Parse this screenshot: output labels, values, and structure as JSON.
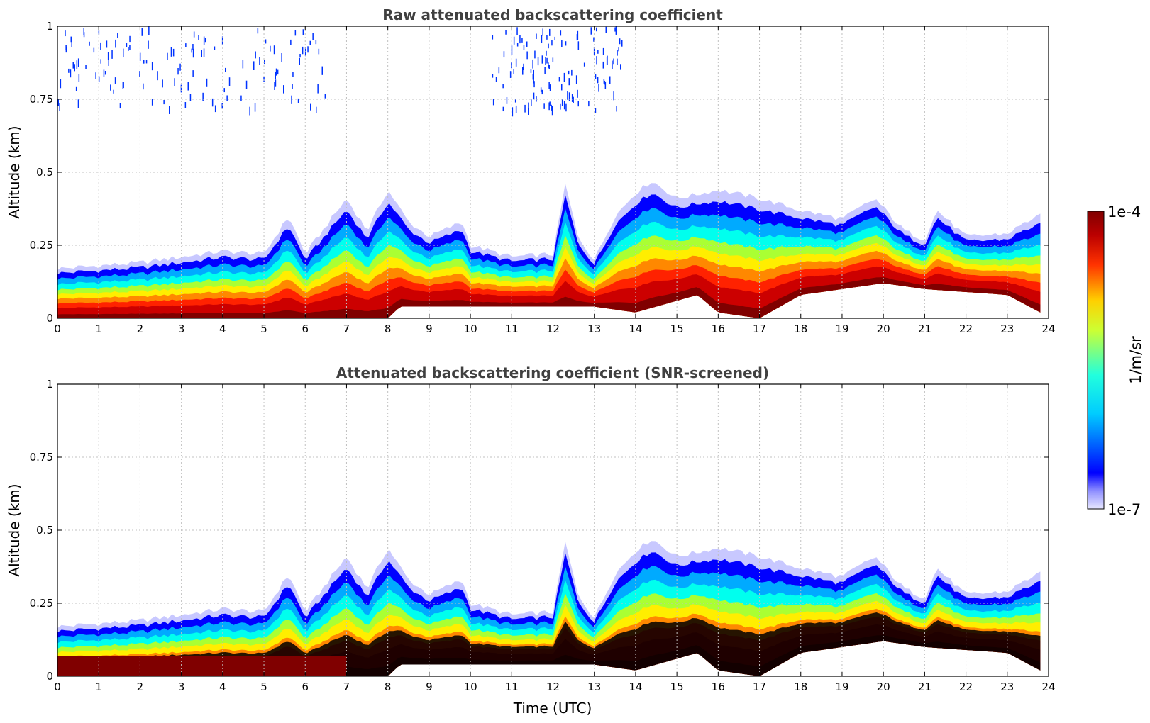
{
  "chart_data": [
    {
      "type": "heatmap",
      "title": "Raw attenuated backscattering coefficient",
      "xlabel": "",
      "ylabel": "Altitude (km)",
      "xlim": [
        0,
        24
      ],
      "ylim": [
        0,
        1
      ],
      "x_ticks": [
        "0",
        "1",
        "2",
        "3",
        "4",
        "5",
        "6",
        "7",
        "8",
        "9",
        "10",
        "11",
        "12",
        "13",
        "14",
        "15",
        "16",
        "17",
        "18",
        "19",
        "20",
        "21",
        "22",
        "23",
        "24"
      ],
      "y_ticks": [
        "0",
        "0.25",
        "0.5",
        "0.75",
        "1"
      ],
      "grid": true,
      "screened": false,
      "layer_top_km": [
        [
          0,
          0.17
        ],
        [
          1,
          0.18
        ],
        [
          2,
          0.19
        ],
        [
          3,
          0.21
        ],
        [
          4,
          0.23
        ],
        [
          5,
          0.22
        ],
        [
          5.6,
          0.35
        ],
        [
          6,
          0.22
        ],
        [
          7,
          0.41
        ],
        [
          7.5,
          0.3
        ],
        [
          8,
          0.44
        ],
        [
          8.5,
          0.33
        ],
        [
          9,
          0.28
        ],
        [
          9.8,
          0.33
        ],
        [
          10,
          0.25
        ],
        [
          11,
          0.21
        ],
        [
          12,
          0.22
        ],
        [
          12.3,
          0.46
        ],
        [
          12.6,
          0.28
        ],
        [
          13,
          0.2
        ],
        [
          13.5,
          0.35
        ],
        [
          14,
          0.43
        ],
        [
          14.4,
          0.47
        ],
        [
          15,
          0.41
        ],
        [
          16,
          0.44
        ],
        [
          17,
          0.41
        ],
        [
          18,
          0.37
        ],
        [
          19,
          0.34
        ],
        [
          19.8,
          0.41
        ],
        [
          20.5,
          0.3
        ],
        [
          21,
          0.27
        ],
        [
          21.3,
          0.37
        ],
        [
          22,
          0.28
        ],
        [
          23,
          0.29
        ],
        [
          23.7,
          0.35
        ]
      ],
      "layer_base_km": [
        [
          0,
          0
        ],
        [
          8,
          0
        ],
        [
          8.3,
          0.04
        ],
        [
          13,
          0.04
        ],
        [
          14,
          0.02
        ],
        [
          15.5,
          0.08
        ],
        [
          16,
          0.02
        ],
        [
          17,
          0.0
        ],
        [
          18,
          0.08
        ],
        [
          19,
          0.1
        ],
        [
          20,
          0.12
        ],
        [
          21,
          0.1
        ],
        [
          22,
          0.09
        ],
        [
          23,
          0.08
        ],
        [
          23.8,
          0.02
        ]
      ],
      "signal_end_hour": 23.8
    },
    {
      "type": "heatmap",
      "title": "Attenuated backscattering coefficient (SNR-screened)",
      "xlabel": "Time (UTC)",
      "ylabel": "Altitude (km)",
      "xlim": [
        0,
        24
      ],
      "ylim": [
        0,
        1
      ],
      "x_ticks": [
        "0",
        "1",
        "2",
        "3",
        "4",
        "5",
        "6",
        "7",
        "8",
        "9",
        "10",
        "11",
        "12",
        "13",
        "14",
        "15",
        "16",
        "17",
        "18",
        "19",
        "20",
        "21",
        "22",
        "23",
        "24"
      ],
      "y_ticks": [
        "0",
        "0.25",
        "0.5",
        "0.75",
        "1"
      ],
      "grid": true,
      "screened": true,
      "masked_color": "#000000",
      "signal_end_hour": 23.8
    }
  ],
  "colorbar": {
    "label": "1/m/sr",
    "max_label": "1e-4",
    "min_label": "1e-7",
    "colormap": "jet",
    "scale": "log",
    "range": [
      1e-07,
      0.0001
    ]
  },
  "colors": {
    "title": "#404040",
    "grid": "#c0c0c0",
    "low_pale": "#e0e0ff",
    "blue": "#0000ff",
    "dark_red": "#800000",
    "masked": "#000000"
  }
}
